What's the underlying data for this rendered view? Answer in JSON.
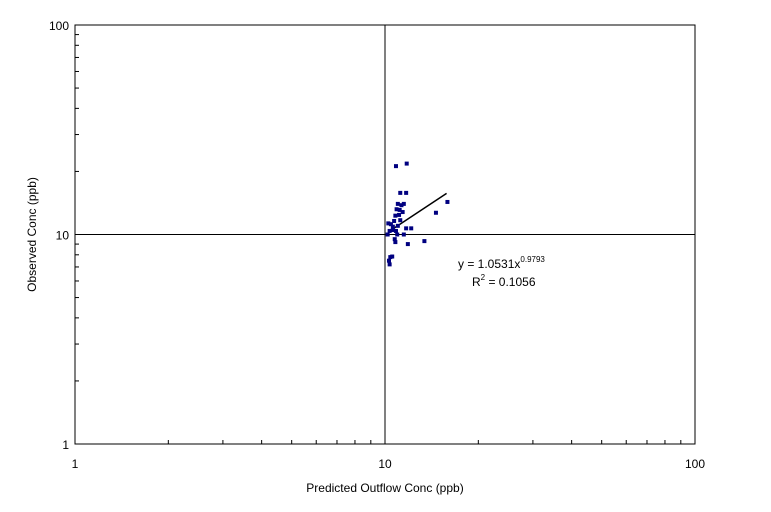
{
  "chart_data": {
    "type": "scatter",
    "xlabel": "Predicted Outflow Conc (ppb)",
    "ylabel": "Observed Conc (ppb)",
    "x_scale": "log",
    "y_scale": "log",
    "xlim": [
      1,
      100
    ],
    "ylim": [
      1,
      100
    ],
    "x_ticks": [
      "1",
      "10",
      "100"
    ],
    "y_ticks": [
      "1",
      "10",
      "100"
    ],
    "grid": "decades",
    "legend": "none",
    "marker_color": "#000080",
    "points": [
      {
        "x": 10.25,
        "y": 11.3
      },
      {
        "x": 10.45,
        "y": 11.2
      },
      {
        "x": 10.35,
        "y": 10.4
      },
      {
        "x": 10.6,
        "y": 10.9
      },
      {
        "x": 10.7,
        "y": 11.6
      },
      {
        "x": 10.8,
        "y": 12.3
      },
      {
        "x": 10.9,
        "y": 13.2
      },
      {
        "x": 11.0,
        "y": 14.0
      },
      {
        "x": 11.15,
        "y": 13.1
      },
      {
        "x": 11.3,
        "y": 13.8
      },
      {
        "x": 11.5,
        "y": 14.0
      },
      {
        "x": 11.1,
        "y": 12.4
      },
      {
        "x": 11.2,
        "y": 11.7
      },
      {
        "x": 11.4,
        "y": 12.8
      },
      {
        "x": 10.85,
        "y": 10.4
      },
      {
        "x": 10.95,
        "y": 10.0
      },
      {
        "x": 10.75,
        "y": 9.5
      },
      {
        "x": 10.8,
        "y": 9.2
      },
      {
        "x": 11.5,
        "y": 10.0
      },
      {
        "x": 11.7,
        "y": 10.7
      },
      {
        "x": 12.15,
        "y": 10.7
      },
      {
        "x": 11.85,
        "y": 9.0
      },
      {
        "x": 10.4,
        "y": 7.8
      },
      {
        "x": 10.55,
        "y": 7.85
      },
      {
        "x": 10.3,
        "y": 7.5
      },
      {
        "x": 10.35,
        "y": 7.2
      },
      {
        "x": 10.2,
        "y": 10.0
      },
      {
        "x": 10.85,
        "y": 21.2
      },
      {
        "x": 11.75,
        "y": 21.8
      },
      {
        "x": 11.2,
        "y": 15.8
      },
      {
        "x": 11.7,
        "y": 15.8
      },
      {
        "x": 13.4,
        "y": 9.3
      },
      {
        "x": 14.6,
        "y": 12.7
      },
      {
        "x": 15.9,
        "y": 14.3
      },
      {
        "x": 11.0,
        "y": 11.0
      },
      {
        "x": 10.6,
        "y": 10.5
      }
    ],
    "trendline": {
      "type": "power",
      "x_range": [
        10.3,
        15.8
      ],
      "a": 1.0531,
      "b": 0.9793
    },
    "annotation": {
      "equation_base": "y = 1.0531x",
      "equation_exponent": "0.9793",
      "r2_prefix": "R",
      "r2_exponent": "2",
      "r2_value": " = 0.1056"
    }
  }
}
